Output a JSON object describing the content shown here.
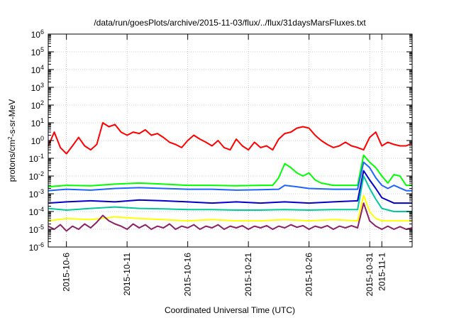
{
  "chart_data": {
    "type": "line",
    "title": "/data/run/goesPlots/archive/2015-11-03/flux/../flux/31daysMarsFluxes.txt",
    "xlabel": "Coordinated Universal Time (UTC)",
    "ylabel": {
      "main": "protons/cm",
      "sup": "2",
      "rest": "-s-sr-MeV"
    },
    "y_scale": "log",
    "ylim": [
      1e-06,
      1000000.0
    ],
    "y_ticks": [
      {
        "base": "10",
        "exp": "-6"
      },
      {
        "base": "10",
        "exp": "-5"
      },
      {
        "base": "10",
        "exp": "-4"
      },
      {
        "base": "10",
        "exp": "-3"
      },
      {
        "base": "10",
        "exp": "-2"
      },
      {
        "base": "10",
        "exp": "-1"
      },
      {
        "base": "10",
        "exp": "0"
      },
      {
        "base": "10",
        "exp": "1"
      },
      {
        "base": "10",
        "exp": "2"
      },
      {
        "base": "10",
        "exp": "3"
      },
      {
        "base": "10",
        "exp": "4"
      },
      {
        "base": "10",
        "exp": "5"
      },
      {
        "base": "10",
        "exp": "6"
      }
    ],
    "xlim": [
      "2015-10-04T12:00",
      "2015-11-03T12:00"
    ],
    "x_ticks": [
      "2015-10-6",
      "2015-10-11",
      "2015-10-16",
      "2015-10-21",
      "2015-10-26",
      "2015-10-31",
      "2015-11-1"
    ],
    "x_tick_dates": [
      "2015-10-06",
      "2015-10-11",
      "2015-10-16",
      "2015-10-21",
      "2015-10-26",
      "2015-10-31",
      "2015-11-01"
    ],
    "grid": true,
    "series": [
      {
        "color": "#ff0000",
        "points": [
          [
            "2015-10-04T12:00",
            0.5
          ],
          [
            "2015-10-05T00:00",
            3
          ],
          [
            "2015-10-05T12:00",
            0.4
          ],
          [
            "2015-10-06T00:00",
            0.18
          ],
          [
            "2015-10-06T12:00",
            0.5
          ],
          [
            "2015-10-07T00:00",
            1.5
          ],
          [
            "2015-10-07T12:00",
            0.5
          ],
          [
            "2015-10-08T00:00",
            0.3
          ],
          [
            "2015-10-08T12:00",
            0.6
          ],
          [
            "2015-10-09T00:00",
            10
          ],
          [
            "2015-10-09T12:00",
            6
          ],
          [
            "2015-10-10T00:00",
            8
          ],
          [
            "2015-10-10T12:00",
            3
          ],
          [
            "2015-10-11T00:00",
            2
          ],
          [
            "2015-10-11T12:00",
            3
          ],
          [
            "2015-10-12T00:00",
            2.5
          ],
          [
            "2015-10-12T12:00",
            4
          ],
          [
            "2015-10-13T00:00",
            2
          ],
          [
            "2015-10-13T12:00",
            2.5
          ],
          [
            "2015-10-14T00:00",
            1.5
          ],
          [
            "2015-10-14T12:00",
            0.8
          ],
          [
            "2015-10-15T00:00",
            0.6
          ],
          [
            "2015-10-15T12:00",
            0.4
          ],
          [
            "2015-10-16T00:00",
            1
          ],
          [
            "2015-10-16T12:00",
            2
          ],
          [
            "2015-10-17T00:00",
            1.2
          ],
          [
            "2015-10-17T12:00",
            0.8
          ],
          [
            "2015-10-18T00:00",
            0.5
          ],
          [
            "2015-10-18T12:00",
            1
          ],
          [
            "2015-10-19T00:00",
            0.4
          ],
          [
            "2015-10-19T12:00",
            0.3
          ],
          [
            "2015-10-20T00:00",
            1.2
          ],
          [
            "2015-10-20T12:00",
            0.5
          ],
          [
            "2015-10-21T00:00",
            0.3
          ],
          [
            "2015-10-21T12:00",
            0.8
          ],
          [
            "2015-10-22T00:00",
            0.4
          ],
          [
            "2015-10-22T12:00",
            0.5
          ],
          [
            "2015-10-23T00:00",
            0.3
          ],
          [
            "2015-10-23T12:00",
            1.2
          ],
          [
            "2015-10-24T00:00",
            2.5
          ],
          [
            "2015-10-24T12:00",
            3
          ],
          [
            "2015-10-25T00:00",
            5
          ],
          [
            "2015-10-25T12:00",
            6
          ],
          [
            "2015-10-26T00:00",
            5
          ],
          [
            "2015-10-26T12:00",
            2
          ],
          [
            "2015-10-27T00:00",
            1
          ],
          [
            "2015-10-27T12:00",
            0.6
          ],
          [
            "2015-10-28T00:00",
            0.4
          ],
          [
            "2015-10-28T12:00",
            0.5
          ],
          [
            "2015-10-29T00:00",
            0.8
          ],
          [
            "2015-10-29T12:00",
            0.5
          ],
          [
            "2015-10-30T00:00",
            0.4
          ],
          [
            "2015-10-30T12:00",
            0.3
          ],
          [
            "2015-10-31T00:00",
            1.5
          ],
          [
            "2015-10-31T12:00",
            3
          ],
          [
            "2015-11-01T00:00",
            0.5
          ],
          [
            "2015-11-01T12:00",
            0.8
          ],
          [
            "2015-11-02T00:00",
            0.6
          ],
          [
            "2015-11-02T12:00",
            0.5
          ],
          [
            "2015-11-03T00:00",
            0.5
          ],
          [
            "2015-11-03T12:00",
            0.7
          ]
        ]
      },
      {
        "color": "#00ff00",
        "points": [
          [
            "2015-10-04T12:00",
            0.0025
          ],
          [
            "2015-10-06T00:00",
            0.003
          ],
          [
            "2015-10-08T00:00",
            0.0028
          ],
          [
            "2015-10-10T00:00",
            0.0035
          ],
          [
            "2015-10-12T00:00",
            0.004
          ],
          [
            "2015-10-14T00:00",
            0.0035
          ],
          [
            "2015-10-16T00:00",
            0.003
          ],
          [
            "2015-10-18T00:00",
            0.003
          ],
          [
            "2015-10-20T00:00",
            0.0028
          ],
          [
            "2015-10-22T00:00",
            0.003
          ],
          [
            "2015-10-23T00:00",
            0.003
          ],
          [
            "2015-10-23T12:00",
            0.008
          ],
          [
            "2015-10-24T00:00",
            0.05
          ],
          [
            "2015-10-24T12:00",
            0.03
          ],
          [
            "2015-10-25T00:00",
            0.015
          ],
          [
            "2015-10-25T12:00",
            0.01
          ],
          [
            "2015-10-26T00:00",
            0.015
          ],
          [
            "2015-10-26T12:00",
            0.006
          ],
          [
            "2015-10-27T00:00",
            0.004
          ],
          [
            "2015-10-28T00:00",
            0.003
          ],
          [
            "2015-10-29T00:00",
            0.003
          ],
          [
            "2015-10-30T00:00",
            0.003
          ],
          [
            "2015-10-30T12:00",
            0.15
          ],
          [
            "2015-10-31T00:00",
            0.06
          ],
          [
            "2015-10-31T12:00",
            0.03
          ],
          [
            "2015-11-01T00:00",
            0.01
          ],
          [
            "2015-11-01T12:00",
            0.004
          ],
          [
            "2015-11-02T00:00",
            0.012
          ],
          [
            "2015-11-02T12:00",
            0.01
          ],
          [
            "2015-11-03T00:00",
            0.003
          ],
          [
            "2015-11-03T12:00",
            0.003
          ]
        ]
      },
      {
        "color": "#1e64ff",
        "points": [
          [
            "2015-10-04T12:00",
            0.0015
          ],
          [
            "2015-10-06T00:00",
            0.0018
          ],
          [
            "2015-10-08T00:00",
            0.0016
          ],
          [
            "2015-10-10T00:00",
            0.002
          ],
          [
            "2015-10-12T00:00",
            0.0022
          ],
          [
            "2015-10-14T00:00",
            0.002
          ],
          [
            "2015-10-16T00:00",
            0.0018
          ],
          [
            "2015-10-18T00:00",
            0.0018
          ],
          [
            "2015-10-20T00:00",
            0.0016
          ],
          [
            "2015-10-22T00:00",
            0.0017
          ],
          [
            "2015-10-23T12:00",
            0.0018
          ],
          [
            "2015-10-24T00:00",
            0.003
          ],
          [
            "2015-10-25T00:00",
            0.0025
          ],
          [
            "2015-10-26T00:00",
            0.002
          ],
          [
            "2015-10-28T00:00",
            0.0018
          ],
          [
            "2015-10-30T00:00",
            0.0018
          ],
          [
            "2015-10-30T12:00",
            0.06
          ],
          [
            "2015-10-31T00:00",
            0.03
          ],
          [
            "2015-10-31T12:00",
            0.008
          ],
          [
            "2015-11-01T00:00",
            0.003
          ],
          [
            "2015-11-01T12:00",
            0.002
          ],
          [
            "2015-11-02T00:00",
            0.003
          ],
          [
            "2015-11-03T00:00",
            0.0015
          ],
          [
            "2015-11-03T12:00",
            0.0015
          ]
        ]
      },
      {
        "color": "#0000cc",
        "points": [
          [
            "2015-10-04T12:00",
            0.0003
          ],
          [
            "2015-10-06T00:00",
            0.00035
          ],
          [
            "2015-10-08T00:00",
            0.0004
          ],
          [
            "2015-10-10T00:00",
            0.00035
          ],
          [
            "2015-10-12T00:00",
            0.00045
          ],
          [
            "2015-10-14T00:00",
            0.0004
          ],
          [
            "2015-10-16T00:00",
            0.00035
          ],
          [
            "2015-10-18T00:00",
            0.0003
          ],
          [
            "2015-10-20T00:00",
            0.00035
          ],
          [
            "2015-10-22T00:00",
            0.0003
          ],
          [
            "2015-10-24T00:00",
            0.00035
          ],
          [
            "2015-10-26T00:00",
            0.0003
          ],
          [
            "2015-10-28T00:00",
            0.00035
          ],
          [
            "2015-10-30T00:00",
            0.0004
          ],
          [
            "2015-10-30T12:00",
            0.02
          ],
          [
            "2015-10-31T00:00",
            0.006
          ],
          [
            "2015-10-31T12:00",
            0.002
          ],
          [
            "2015-11-01T00:00",
            0.0006
          ],
          [
            "2015-11-02T00:00",
            0.0003
          ],
          [
            "2015-11-03T12:00",
            0.0003
          ]
        ]
      },
      {
        "color": "#00c8a0",
        "points": [
          [
            "2015-10-04T12:00",
            0.00015
          ],
          [
            "2015-10-06T00:00",
            0.00012
          ],
          [
            "2015-10-08T00:00",
            0.00015
          ],
          [
            "2015-10-10T00:00",
            0.00018
          ],
          [
            "2015-10-12T00:00",
            0.00015
          ],
          [
            "2015-10-14T00:00",
            0.00014
          ],
          [
            "2015-10-16T00:00",
            0.00013
          ],
          [
            "2015-10-18T00:00",
            0.00013
          ],
          [
            "2015-10-20T00:00",
            0.00012
          ],
          [
            "2015-10-22T00:00",
            0.00012
          ],
          [
            "2015-10-24T00:00",
            0.00013
          ],
          [
            "2015-10-26T00:00",
            0.00012
          ],
          [
            "2015-10-28T00:00",
            0.00013
          ],
          [
            "2015-10-30T00:00",
            0.00013
          ],
          [
            "2015-10-30T12:00",
            0.01
          ],
          [
            "2015-10-31T00:00",
            0.002
          ],
          [
            "2015-10-31T12:00",
            0.0005
          ],
          [
            "2015-11-01T00:00",
            0.00015
          ],
          [
            "2015-11-02T00:00",
            0.0001
          ],
          [
            "2015-11-03T12:00",
            0.0001
          ]
        ]
      },
      {
        "color": "#ffff00",
        "points": [
          [
            "2015-10-04T12:00",
            3e-05
          ],
          [
            "2015-10-06T00:00",
            4e-05
          ],
          [
            "2015-10-08T00:00",
            3.5e-05
          ],
          [
            "2015-10-10T00:00",
            5e-05
          ],
          [
            "2015-10-12T00:00",
            4e-05
          ],
          [
            "2015-10-14T00:00",
            3.5e-05
          ],
          [
            "2015-10-16T00:00",
            3e-05
          ],
          [
            "2015-10-18T00:00",
            3.5e-05
          ],
          [
            "2015-10-20T00:00",
            3e-05
          ],
          [
            "2015-10-22T00:00",
            3e-05
          ],
          [
            "2015-10-24T00:00",
            3.5e-05
          ],
          [
            "2015-10-26T00:00",
            3e-05
          ],
          [
            "2015-10-28T00:00",
            3.5e-05
          ],
          [
            "2015-10-30T00:00",
            3e-05
          ],
          [
            "2015-10-30T12:00",
            0.0008
          ],
          [
            "2015-10-31T00:00",
            0.0001
          ],
          [
            "2015-10-31T12:00",
            4e-05
          ],
          [
            "2015-11-01T00:00",
            3e-05
          ],
          [
            "2015-11-03T12:00",
            3e-05
          ]
        ]
      },
      {
        "color": "#8b2063",
        "points": [
          [
            "2015-10-04T12:00",
            1.5e-05
          ],
          [
            "2015-10-05T00:00",
            1e-05
          ],
          [
            "2015-10-05T12:00",
            1.8e-05
          ],
          [
            "2015-10-06T00:00",
            8e-06
          ],
          [
            "2015-10-06T12:00",
            1.5e-05
          ],
          [
            "2015-10-07T00:00",
            1e-05
          ],
          [
            "2015-10-07T12:00",
            2e-05
          ],
          [
            "2015-10-08T00:00",
            1.2e-05
          ],
          [
            "2015-10-08T12:00",
            2.5e-05
          ],
          [
            "2015-10-09T00:00",
            6e-05
          ],
          [
            "2015-10-09T12:00",
            3e-05
          ],
          [
            "2015-10-10T00:00",
            2e-05
          ],
          [
            "2015-10-10T12:00",
            1.5e-05
          ],
          [
            "2015-10-11T00:00",
            1e-05
          ],
          [
            "2015-10-11T12:00",
            2e-05
          ],
          [
            "2015-10-12T00:00",
            1.2e-05
          ],
          [
            "2015-10-12T12:00",
            1.8e-05
          ],
          [
            "2015-10-13T00:00",
            1e-05
          ],
          [
            "2015-10-13T12:00",
            1.5e-05
          ],
          [
            "2015-10-14T00:00",
            1.2e-05
          ],
          [
            "2015-10-14T12:00",
            2e-05
          ],
          [
            "2015-10-15T00:00",
            1e-05
          ],
          [
            "2015-10-15T12:00",
            1.5e-05
          ],
          [
            "2015-10-16T00:00",
            1.2e-05
          ],
          [
            "2015-10-16T12:00",
            1.8e-05
          ],
          [
            "2015-10-17T00:00",
            1e-05
          ],
          [
            "2015-10-17T12:00",
            1.5e-05
          ],
          [
            "2015-10-18T00:00",
            1.2e-05
          ],
          [
            "2015-10-18T12:00",
            1.8e-05
          ],
          [
            "2015-10-19T00:00",
            1e-05
          ],
          [
            "2015-10-19T12:00",
            1.5e-05
          ],
          [
            "2015-10-20T00:00",
            1.2e-05
          ],
          [
            "2015-10-20T12:00",
            1.6e-05
          ],
          [
            "2015-10-21T00:00",
            1e-05
          ],
          [
            "2015-10-21T12:00",
            1.5e-05
          ],
          [
            "2015-10-22T00:00",
            1.2e-05
          ],
          [
            "2015-10-22T12:00",
            1.6e-05
          ],
          [
            "2015-10-23T00:00",
            1e-05
          ],
          [
            "2015-10-23T12:00",
            1.5e-05
          ],
          [
            "2015-10-24T00:00",
            1.2e-05
          ],
          [
            "2015-10-24T12:00",
            1.8e-05
          ],
          [
            "2015-10-25T00:00",
            1.3e-05
          ],
          [
            "2015-10-25T12:00",
            1.6e-05
          ],
          [
            "2015-10-26T00:00",
            1e-05
          ],
          [
            "2015-10-26T12:00",
            1.5e-05
          ],
          [
            "2015-10-27T00:00",
            1.2e-05
          ],
          [
            "2015-10-27T12:00",
            1.6e-05
          ],
          [
            "2015-10-28T00:00",
            1e-05
          ],
          [
            "2015-10-28T12:00",
            1.5e-05
          ],
          [
            "2015-10-29T00:00",
            1.2e-05
          ],
          [
            "2015-10-29T12:00",
            1.6e-05
          ],
          [
            "2015-10-30T00:00",
            1.2e-05
          ],
          [
            "2015-10-30T12:00",
            0.0003
          ],
          [
            "2015-10-31T00:00",
            3e-05
          ],
          [
            "2015-10-31T12:00",
            1.5e-05
          ],
          [
            "2015-11-01T00:00",
            1e-05
          ],
          [
            "2015-11-01T12:00",
            1.5e-05
          ],
          [
            "2015-11-02T00:00",
            1e-05
          ],
          [
            "2015-11-02T12:00",
            1.4e-05
          ],
          [
            "2015-11-03T00:00",
            1e-05
          ],
          [
            "2015-11-03T12:00",
            1.2e-05
          ]
        ]
      }
    ]
  }
}
